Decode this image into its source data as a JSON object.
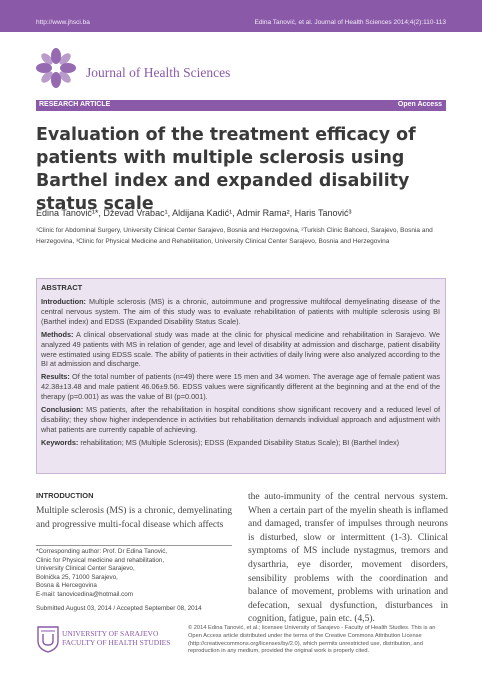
{
  "header": {
    "url": "http://www.jhsci.ba",
    "citation": "Edina Tanović, et al. Journal of Health Sciences 2014;4(2):110-113"
  },
  "journal": {
    "name": "Journal of Health Sciences"
  },
  "banner": {
    "type": "RESEARCH ARTICLE",
    "access": "Open Access"
  },
  "article": {
    "title": "Evaluation of the treatment efficacy of patients with multiple sclerosis using Barthel index and expanded disability status scale",
    "authors": "Edina Tanović¹*, Dževad Vrabac¹, Aldijana Kadić¹, Admir Rama², Haris Tanović³",
    "affiliations": "¹Clinic for Abdominal Surgery, University Clinical Center Sarajevo, Bosnia and Herzegovina, ²Turkish Clinic Bahceci, Sarajevo, Bosnia and Herzegovina, ³Clinic for Physical Medicine and Rehabilitation, University Clinical Center Sarajevo, Bosnia and Herzegovina"
  },
  "abstract": {
    "heading": "ABSTRACT",
    "sections": [
      {
        "label": "Introduction:",
        "text": "Multiple sclerosis (MS) is a chronic, autoimmune and progressive multifocal demyelinating disease of the central nervous system. The aim of this study was to evaluate rehabilitation of patients with multiple sclerosis using BI (Barthel index) and EDSS (Expanded Disability Status Scale)."
      },
      {
        "label": "Methods:",
        "text": "A clinical observational study was made at the clinic for physical medicine and rehabilitation in Sarajevo. We analyzed 49 patients with MS in relation of gender, age and level of disability at admission and discharge, patient disability were estimated using EDSS scale. The ability of patients in their activities of daily living were also analyzed according to the BI at admission and discharge."
      },
      {
        "label": "Results:",
        "text": "Of the total number of patients (n=49) there were 15 men and 34 women. The average age of female patient was 42.38±13.48 and male patient 46.06±9.56. EDSS values were significantly different at the beginning and at the end of the therapy (p=0.001) as was the value of BI (p=0.001)."
      },
      {
        "label": "Conclusion:",
        "text": "MS patients, after the rehabilitation in hospital conditions show significant recovery and a reduced level of disability; they show higher independence in activities but rehabilitation demands individual approach and adjustment with what patients are currently capable of achieving."
      },
      {
        "label": "Keywords:",
        "text": "rehabilitation; MS (Multiple Sclerosis); EDSS (Expanded Disability Status Scale); BI (Barthel Index)"
      }
    ]
  },
  "intro": {
    "heading": "INTRODUCTION",
    "text": "Multiple sclerosis (MS) is a chronic, demyelinating and progressive multi-focal disease which affects",
    "continued": "the auto-immunity of the central nervous system. When a certain part of the myelin sheath is inflamed and damaged, transfer of impulses through neurons is disturbed, slow or intermittent (1-3). Clinical symptoms of MS include nystagmus, tremors and dysarthria, eye disorder, movement disorders, sensibility problems with the coordination and balance of movement, problems with urination and defecation, sexual dysfunction, disturbances in cognition, fatigue, pain etc. (4,5)."
  },
  "correspondence": {
    "lines": [
      "*Corresponding author: Prof. Dr Edina Tanović,",
      "Clinic for Physical medicine and rehabilitation,",
      "University Clinical Center Sarajevo,",
      "Bolnička 25, 71000 Sarajevo,",
      "Bosna & Hercegovina",
      "E-mail: tanovicedina@hotmail.com"
    ]
  },
  "submitted": "Submitted August 03, 2014 / Accepted September 08, 2014",
  "footer": {
    "university": [
      "UNIVERSITY OF SARAJEVO",
      "FACULTY OF HEALTH STUDIES"
    ],
    "license": "© 2014 Edina Tanović, et al.; licensee University of Sarajevo - Faculty of Health Studies. This is an Open Access article distributed under the terms of the Creative Commons Attribution License (http://creativecommons.org/licenses/by/2.0), which permits unrestricted use, distribution, and reproduction in any medium, provided the original work is properly cited."
  },
  "colors": {
    "accent": "#8a5aa8",
    "abstract_bg": "#ece4f1"
  }
}
